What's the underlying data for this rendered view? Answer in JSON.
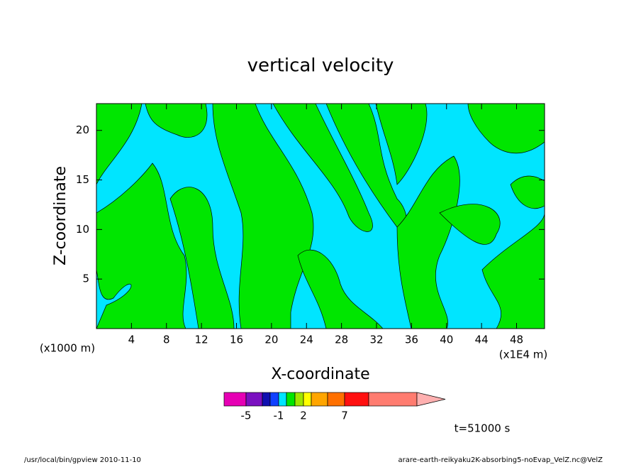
{
  "chart_data": {
    "type": "contour",
    "title": "vertical velocity",
    "xlabel": "X-coordinate",
    "ylabel": "Z-coordinate",
    "x_unit_left": "(x1000 m)",
    "x_unit_right": "(x1E4 m)",
    "xlim": [
      0,
      51.2
    ],
    "xticks": [
      4,
      8,
      12,
      16,
      20,
      24,
      28,
      32,
      36,
      40,
      44,
      48
    ],
    "ylim": [
      0,
      22.7
    ],
    "yticks": [
      5,
      10,
      15,
      20
    ],
    "field_colors": [
      "#00e5ff",
      "#00e600"
    ],
    "colorbar": {
      "colors": [
        "#e600b4",
        "#7a10c0",
        "#1010b0",
        "#1040ff",
        "#00e5ff",
        "#00e600",
        "#a0e600",
        "#ffff00",
        "#ffa500",
        "#ff7000",
        "#ff1010",
        "#ff7c70",
        "#ffb0b0"
      ],
      "ticks": [
        -5,
        -1,
        2,
        7
      ]
    },
    "time_label": "t=51000 s",
    "footer_left": "/usr/local/bin/gpview  2010-11-10",
    "footer_right": "arare-earth-reikyaku2K-absorbing5-noEvap_VelZ.nc@VelZ"
  }
}
